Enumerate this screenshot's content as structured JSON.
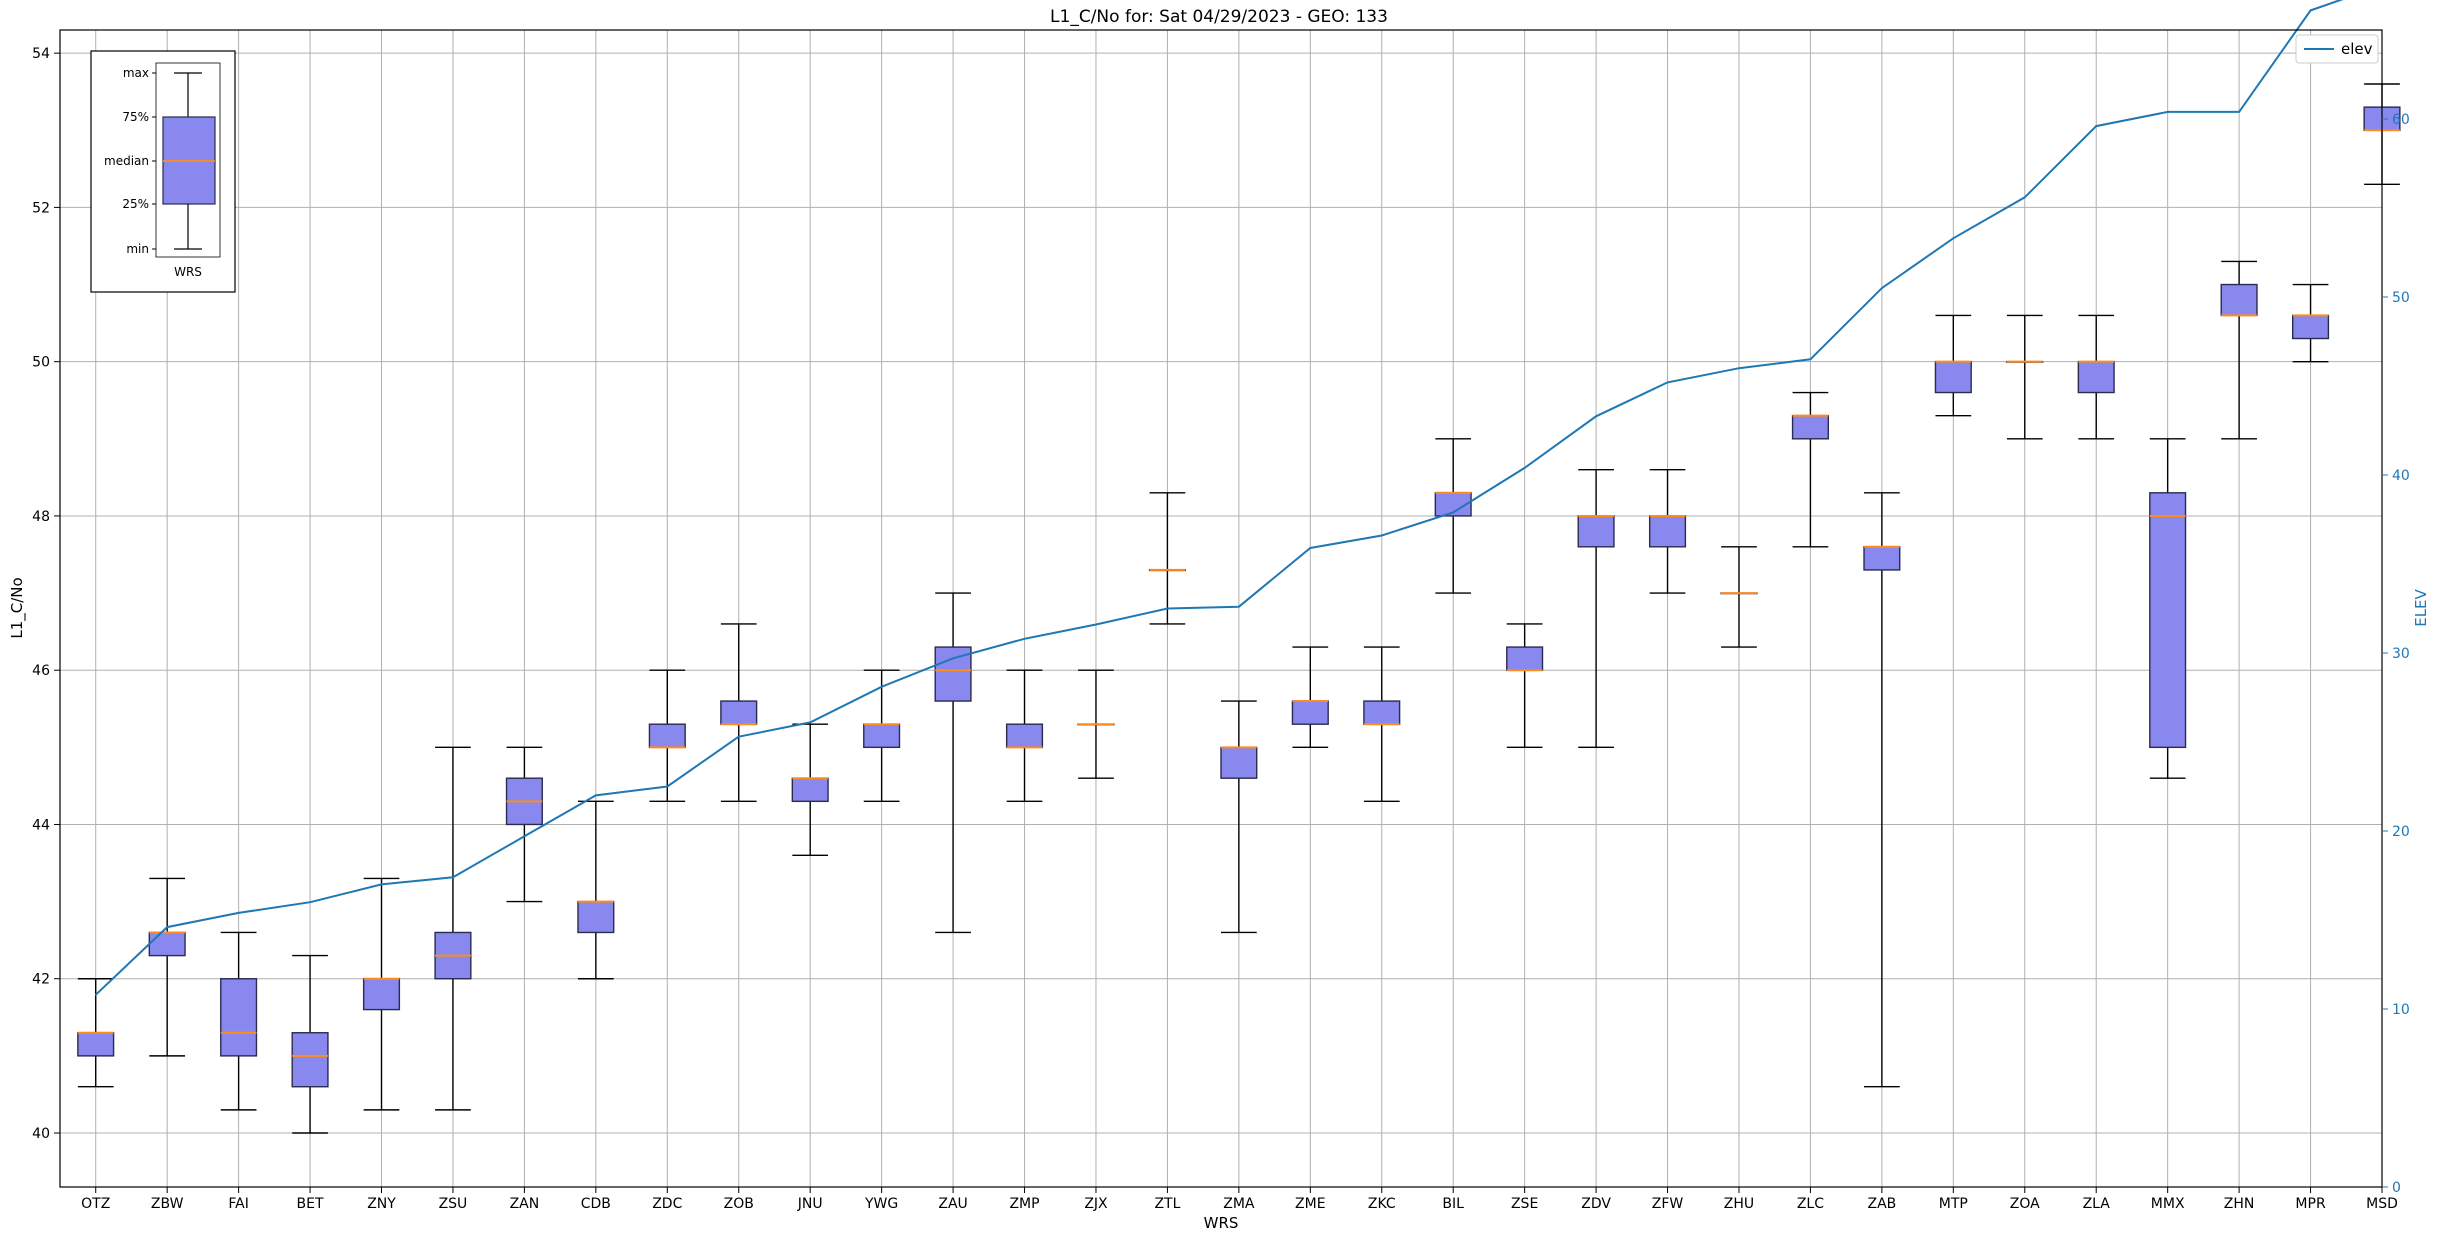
{
  "chart_data": {
    "type": "box",
    "title": "L1_C/No for: Sat 04/29/2023 - GEO: 133",
    "xlabel": "WRS",
    "ylabel": "L1_C/No",
    "y2label": "ELEV",
    "ylim": [
      39.3,
      54.3
    ],
    "y2lim": [
      0,
      65
    ],
    "yticks": [
      "40",
      "42",
      "44",
      "46",
      "48",
      "50",
      "52",
      "54"
    ],
    "y2ticks": [
      "0",
      "10",
      "20",
      "30",
      "40",
      "50",
      "60"
    ],
    "grid": true,
    "legend": {
      "position": "top-right",
      "entries": [
        "elev"
      ]
    },
    "colors": {
      "box_fill": "#8888ee",
      "median": "#ff8c1a",
      "elev_line": "#1f77b4",
      "y2_axis": "#1f77b4"
    },
    "categories": [
      "OTZ",
      "ZBW",
      "FAI",
      "BET",
      "ZNY",
      "ZSU",
      "ZAN",
      "CDB",
      "ZDC",
      "ZOB",
      "JNU",
      "YWG",
      "ZAU",
      "ZMP",
      "ZJX",
      "ZTL",
      "ZMA",
      "ZME",
      "ZKC",
      "BIL",
      "ZSE",
      "ZDV",
      "ZFW",
      "ZHU",
      "ZLC",
      "ZAB",
      "MTP",
      "ZOA",
      "ZLA",
      "MMX",
      "ZHN",
      "MPR",
      "MSD"
    ],
    "boxes": [
      {
        "min": 40.6,
        "q1": 41.0,
        "median": 41.3,
        "q3": 41.3,
        "max": 42.0
      },
      {
        "min": 41.0,
        "q1": 42.3,
        "median": 42.6,
        "q3": 42.6,
        "max": 43.3
      },
      {
        "min": 40.3,
        "q1": 41.0,
        "median": 41.3,
        "q3": 42.0,
        "max": 42.6
      },
      {
        "min": 40.0,
        "q1": 40.6,
        "median": 41.0,
        "q3": 41.3,
        "max": 42.3
      },
      {
        "min": 40.3,
        "q1": 41.6,
        "median": 42.0,
        "q3": 42.0,
        "max": 43.3
      },
      {
        "min": 40.3,
        "q1": 42.0,
        "median": 42.3,
        "q3": 42.6,
        "max": 45.0
      },
      {
        "min": 43.0,
        "q1": 44.0,
        "median": 44.3,
        "q3": 44.6,
        "max": 45.0
      },
      {
        "min": 42.0,
        "q1": 42.6,
        "median": 43.0,
        "q3": 43.0,
        "max": 44.3
      },
      {
        "min": 44.3,
        "q1": 45.0,
        "median": 45.0,
        "q3": 45.3,
        "max": 46.0
      },
      {
        "min": 44.3,
        "q1": 45.3,
        "median": 45.3,
        "q3": 45.6,
        "max": 46.6
      },
      {
        "min": 43.6,
        "q1": 44.3,
        "median": 44.6,
        "q3": 44.6,
        "max": 45.3
      },
      {
        "min": 44.3,
        "q1": 45.0,
        "median": 45.3,
        "q3": 45.3,
        "max": 46.0
      },
      {
        "min": 42.6,
        "q1": 45.6,
        "median": 46.0,
        "q3": 46.3,
        "max": 47.0
      },
      {
        "min": 44.3,
        "q1": 45.0,
        "median": 45.0,
        "q3": 45.3,
        "max": 46.0
      },
      {
        "min": 44.6,
        "q1": 45.3,
        "median": 45.3,
        "q3": 45.3,
        "max": 46.0
      },
      {
        "min": 46.6,
        "q1": 47.3,
        "median": 47.3,
        "q3": 47.3,
        "max": 48.3
      },
      {
        "min": 42.6,
        "q1": 44.6,
        "median": 45.0,
        "q3": 45.0,
        "max": 45.6
      },
      {
        "min": 45.0,
        "q1": 45.3,
        "median": 45.6,
        "q3": 45.6,
        "max": 46.3
      },
      {
        "min": 44.3,
        "q1": 45.3,
        "median": 45.3,
        "q3": 45.6,
        "max": 46.3
      },
      {
        "min": 47.0,
        "q1": 48.0,
        "median": 48.3,
        "q3": 48.3,
        "max": 49.0
      },
      {
        "min": 45.0,
        "q1": 46.0,
        "median": 46.0,
        "q3": 46.3,
        "max": 46.6
      },
      {
        "min": 45.0,
        "q1": 47.6,
        "median": 48.0,
        "q3": 48.0,
        "max": 48.6
      },
      {
        "min": 47.0,
        "q1": 47.6,
        "median": 48.0,
        "q3": 48.0,
        "max": 48.6
      },
      {
        "min": 46.3,
        "q1": 47.0,
        "median": 47.0,
        "q3": 47.0,
        "max": 47.6
      },
      {
        "min": 47.6,
        "q1": 49.0,
        "median": 49.3,
        "q3": 49.3,
        "max": 49.6
      },
      {
        "min": 40.6,
        "q1": 47.3,
        "median": 47.6,
        "q3": 47.6,
        "max": 48.3
      },
      {
        "min": 49.3,
        "q1": 49.6,
        "median": 50.0,
        "q3": 50.0,
        "max": 50.6
      },
      {
        "min": 49.0,
        "q1": 50.0,
        "median": 50.0,
        "q3": 50.0,
        "max": 50.6
      },
      {
        "min": 49.0,
        "q1": 49.6,
        "median": 50.0,
        "q3": 50.0,
        "max": 50.6
      },
      {
        "min": 44.6,
        "q1": 45.0,
        "median": 48.0,
        "q3": 48.3,
        "max": 49.0
      },
      {
        "min": 49.0,
        "q1": 50.6,
        "median": 50.6,
        "q3": 51.0,
        "max": 51.3
      },
      {
        "min": 50.0,
        "q1": 50.3,
        "median": 50.6,
        "q3": 50.6,
        "max": 51.0
      },
      {
        "min": 52.3,
        "q1": 53.0,
        "median": 53.0,
        "q3": 53.3,
        "max": 53.6
      }
    ],
    "series": [
      {
        "name": "elev",
        "axis": "right",
        "values": [
          10.8,
          14.6,
          15.4,
          16.0,
          17.0,
          17.4,
          19.7,
          22.0,
          22.5,
          25.3,
          26.1,
          28.1,
          29.7,
          30.8,
          31.6,
          32.5,
          32.6,
          35.9,
          36.6,
          37.9,
          40.4,
          43.3,
          45.2,
          46.0,
          46.5,
          50.5,
          53.3,
          55.6,
          59.6,
          60.4,
          60.4,
          66.1,
          67.5
        ]
      }
    ],
    "legend_box": {
      "labels": [
        "max",
        "75%",
        "median",
        "25%",
        "min"
      ],
      "xlabel": "WRS"
    }
  }
}
